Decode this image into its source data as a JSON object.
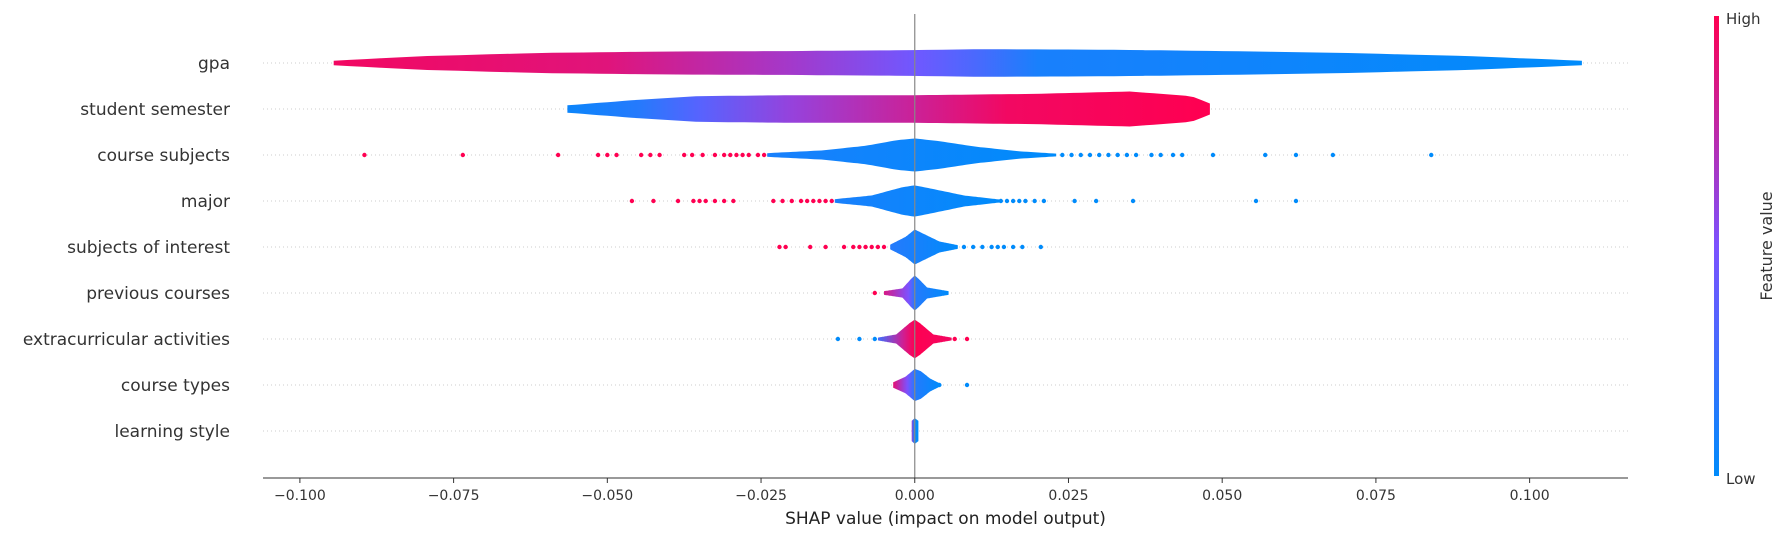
{
  "chart_data": {
    "type": "violin",
    "xlabel": "SHAP value (impact on model output)",
    "xlim": [
      -0.106,
      0.116
    ],
    "x_ticks": [
      -0.1,
      -0.075,
      -0.05,
      -0.025,
      0.0,
      0.025,
      0.05,
      0.075,
      0.1
    ],
    "x_tick_labels": [
      "−0.100",
      "−0.075",
      "−0.050",
      "−0.025",
      "0.000",
      "0.025",
      "0.050",
      "0.075",
      "0.100"
    ],
    "colorbar": {
      "label": "Feature value",
      "high_label": "High",
      "low_label": "Low",
      "high_color": "#ff0051",
      "mid_color": "#7c52ff",
      "low_color": "#008bfb"
    },
    "features": [
      {
        "name": "gpa",
        "range": [
          -0.0945,
          0.1085
        ],
        "profile": [
          [
            -0.0945,
            0.05
          ],
          [
            -0.08,
            0.15
          ],
          [
            -0.06,
            0.22
          ],
          [
            -0.04,
            0.25
          ],
          [
            -0.02,
            0.26
          ],
          [
            0.0,
            0.28
          ],
          [
            0.01,
            0.3
          ],
          [
            0.03,
            0.29
          ],
          [
            0.05,
            0.26
          ],
          [
            0.07,
            0.22
          ],
          [
            0.09,
            0.15
          ],
          [
            0.1085,
            0.05
          ]
        ],
        "colors": [
          [
            -0.0945,
            0.95
          ],
          [
            -0.05,
            0.88
          ],
          [
            -0.02,
            0.65
          ],
          [
            0.0,
            0.45
          ],
          [
            0.01,
            0.3
          ],
          [
            0.02,
            0.1
          ],
          [
            0.1085,
            0.0
          ]
        ],
        "points": []
      },
      {
        "name": "student semester",
        "range": [
          -0.0565,
          0.048
        ],
        "profile": [
          [
            -0.0565,
            0.08
          ],
          [
            -0.045,
            0.2
          ],
          [
            -0.035,
            0.28
          ],
          [
            -0.02,
            0.3
          ],
          [
            0.0,
            0.3
          ],
          [
            0.02,
            0.33
          ],
          [
            0.035,
            0.38
          ],
          [
            0.045,
            0.28
          ],
          [
            0.048,
            0.12
          ]
        ],
        "colors": [
          [
            -0.0565,
            0.05
          ],
          [
            -0.045,
            0.15
          ],
          [
            -0.035,
            0.35
          ],
          [
            -0.02,
            0.6
          ],
          [
            0.0,
            0.8
          ],
          [
            0.015,
            0.95
          ],
          [
            0.048,
            1.0
          ]
        ],
        "points": []
      },
      {
        "name": "course subjects",
        "range": [
          -0.024,
          0.023
        ],
        "profile": [
          [
            -0.024,
            0.04
          ],
          [
            -0.015,
            0.1
          ],
          [
            -0.008,
            0.2
          ],
          [
            -0.003,
            0.32
          ],
          [
            0.0,
            0.36
          ],
          [
            0.004,
            0.3
          ],
          [
            0.01,
            0.18
          ],
          [
            0.017,
            0.08
          ],
          [
            0.023,
            0.03
          ]
        ],
        "colors": [
          [
            -0.024,
            0.1
          ],
          [
            0.023,
            0.0
          ]
        ],
        "points": [
          {
            "x": -0.0895,
            "c": "high"
          },
          {
            "x": -0.0735,
            "c": "high"
          },
          {
            "x": -0.058,
            "c": "high"
          },
          {
            "x": -0.0515,
            "c": "high"
          },
          {
            "x": -0.05,
            "c": "high"
          },
          {
            "x": -0.0485,
            "c": "high"
          },
          {
            "x": -0.0445,
            "c": "high"
          },
          {
            "x": -0.043,
            "c": "high"
          },
          {
            "x": -0.0415,
            "c": "high"
          },
          {
            "x": -0.0375,
            "c": "high"
          },
          {
            "x": -0.0362,
            "c": "high"
          },
          {
            "x": -0.0345,
            "c": "high"
          },
          {
            "x": -0.0325,
            "c": "high"
          },
          {
            "x": -0.031,
            "c": "high"
          },
          {
            "x": -0.03,
            "c": "high"
          },
          {
            "x": -0.029,
            "c": "high"
          },
          {
            "x": -0.028,
            "c": "high"
          },
          {
            "x": -0.027,
            "c": "high"
          },
          {
            "x": -0.0255,
            "c": "high"
          },
          {
            "x": -0.0245,
            "c": "high"
          },
          {
            "x": 0.024,
            "c": "low"
          },
          {
            "x": 0.0255,
            "c": "low"
          },
          {
            "x": 0.027,
            "c": "low"
          },
          {
            "x": 0.0285,
            "c": "low"
          },
          {
            "x": 0.03,
            "c": "low"
          },
          {
            "x": 0.0315,
            "c": "low"
          },
          {
            "x": 0.033,
            "c": "low"
          },
          {
            "x": 0.0345,
            "c": "low"
          },
          {
            "x": 0.036,
            "c": "low"
          },
          {
            "x": 0.0385,
            "c": "low"
          },
          {
            "x": 0.04,
            "c": "low"
          },
          {
            "x": 0.042,
            "c": "low"
          },
          {
            "x": 0.0435,
            "c": "low"
          },
          {
            "x": 0.0485,
            "c": "low"
          },
          {
            "x": 0.057,
            "c": "low"
          },
          {
            "x": 0.062,
            "c": "low"
          },
          {
            "x": 0.068,
            "c": "low"
          },
          {
            "x": 0.084,
            "c": "low"
          }
        ]
      },
      {
        "name": "major",
        "range": [
          -0.013,
          0.014
        ],
        "profile": [
          [
            -0.013,
            0.04
          ],
          [
            -0.007,
            0.12
          ],
          [
            -0.002,
            0.3
          ],
          [
            0.0,
            0.34
          ],
          [
            0.003,
            0.26
          ],
          [
            0.008,
            0.12
          ],
          [
            0.014,
            0.03
          ]
        ],
        "colors": [
          [
            -0.013,
            0.1
          ],
          [
            0.014,
            0.0
          ]
        ],
        "points": [
          {
            "x": -0.046,
            "c": "high"
          },
          {
            "x": -0.0425,
            "c": "high"
          },
          {
            "x": -0.0385,
            "c": "high"
          },
          {
            "x": -0.036,
            "c": "high"
          },
          {
            "x": -0.035,
            "c": "high"
          },
          {
            "x": -0.034,
            "c": "high"
          },
          {
            "x": -0.0325,
            "c": "high"
          },
          {
            "x": -0.031,
            "c": "high"
          },
          {
            "x": -0.0295,
            "c": "high"
          },
          {
            "x": -0.023,
            "c": "high"
          },
          {
            "x": -0.0215,
            "c": "high"
          },
          {
            "x": -0.02,
            "c": "high"
          },
          {
            "x": -0.0185,
            "c": "high"
          },
          {
            "x": -0.0175,
            "c": "high"
          },
          {
            "x": -0.0165,
            "c": "high"
          },
          {
            "x": -0.0155,
            "c": "high"
          },
          {
            "x": -0.0145,
            "c": "high"
          },
          {
            "x": -0.0135,
            "c": "high"
          },
          {
            "x": 0.014,
            "c": "low"
          },
          {
            "x": 0.015,
            "c": "low"
          },
          {
            "x": 0.016,
            "c": "low"
          },
          {
            "x": 0.017,
            "c": "low"
          },
          {
            "x": 0.018,
            "c": "low"
          },
          {
            "x": 0.0195,
            "c": "low"
          },
          {
            "x": 0.021,
            "c": "low"
          },
          {
            "x": 0.026,
            "c": "low"
          },
          {
            "x": 0.0295,
            "c": "low"
          },
          {
            "x": 0.0355,
            "c": "low"
          },
          {
            "x": 0.0555,
            "c": "low"
          },
          {
            "x": 0.062,
            "c": "low"
          }
        ]
      },
      {
        "name": "subjects of interest",
        "range": [
          -0.004,
          0.007
        ],
        "profile": [
          [
            -0.004,
            0.05
          ],
          [
            -0.0015,
            0.22
          ],
          [
            0.0,
            0.38
          ],
          [
            0.002,
            0.25
          ],
          [
            0.004,
            0.12
          ],
          [
            0.007,
            0.04
          ]
        ],
        "colors": [
          [
            -0.004,
            0.15
          ],
          [
            0.007,
            0.0
          ]
        ],
        "points": [
          {
            "x": -0.022,
            "c": "high"
          },
          {
            "x": -0.021,
            "c": "high"
          },
          {
            "x": -0.017,
            "c": "high"
          },
          {
            "x": -0.0145,
            "c": "high"
          },
          {
            "x": -0.0115,
            "c": "high"
          },
          {
            "x": -0.01,
            "c": "high"
          },
          {
            "x": -0.009,
            "c": "high"
          },
          {
            "x": -0.008,
            "c": "high"
          },
          {
            "x": -0.007,
            "c": "high"
          },
          {
            "x": -0.006,
            "c": "high"
          },
          {
            "x": -0.005,
            "c": "high"
          },
          {
            "x": 0.008,
            "c": "low"
          },
          {
            "x": 0.0095,
            "c": "low"
          },
          {
            "x": 0.011,
            "c": "low"
          },
          {
            "x": 0.0125,
            "c": "low"
          },
          {
            "x": 0.0135,
            "c": "low"
          },
          {
            "x": 0.0145,
            "c": "low"
          },
          {
            "x": 0.016,
            "c": "low"
          },
          {
            "x": 0.0175,
            "c": "low"
          },
          {
            "x": 0.0205,
            "c": "low"
          }
        ]
      },
      {
        "name": "previous courses",
        "range": [
          -0.005,
          0.0055
        ],
        "profile": [
          [
            -0.005,
            0.04
          ],
          [
            -0.002,
            0.1
          ],
          [
            -0.0005,
            0.32
          ],
          [
            0.0,
            0.38
          ],
          [
            0.0007,
            0.3
          ],
          [
            0.002,
            0.12
          ],
          [
            0.0055,
            0.04
          ]
        ],
        "colors": [
          [
            -0.005,
            0.85
          ],
          [
            -0.001,
            0.5
          ],
          [
            0.0,
            0.15
          ],
          [
            0.0055,
            0.0
          ]
        ],
        "points": [
          {
            "x": -0.0065,
            "c": "high"
          }
        ]
      },
      {
        "name": "extracurricular activities",
        "range": [
          -0.006,
          0.006
        ],
        "profile": [
          [
            -0.006,
            0.03
          ],
          [
            -0.003,
            0.1
          ],
          [
            -0.0008,
            0.35
          ],
          [
            0.0,
            0.42
          ],
          [
            0.0008,
            0.35
          ],
          [
            0.003,
            0.1
          ],
          [
            0.006,
            0.03
          ]
        ],
        "colors": [
          [
            -0.006,
            0.25
          ],
          [
            -0.002,
            0.8
          ],
          [
            0.0,
            1.0
          ],
          [
            0.006,
            0.95
          ]
        ],
        "points": [
          {
            "x": -0.0125,
            "c": "low"
          },
          {
            "x": -0.009,
            "c": "low"
          },
          {
            "x": -0.0065,
            "c": "low"
          },
          {
            "x": 0.0065,
            "c": "high"
          },
          {
            "x": 0.0085,
            "c": "high"
          }
        ]
      },
      {
        "name": "course types",
        "range": [
          -0.0035,
          0.004
        ],
        "profile": [
          [
            -0.0035,
            0.06
          ],
          [
            -0.0015,
            0.18
          ],
          [
            0.0,
            0.35
          ],
          [
            0.001,
            0.3
          ],
          [
            0.0025,
            0.14
          ],
          [
            0.004,
            0.04
          ]
        ],
        "colors": [
          [
            -0.0035,
            0.9
          ],
          [
            -0.0012,
            0.5
          ],
          [
            0.0,
            0.15
          ],
          [
            0.004,
            0.0
          ]
        ],
        "points": [
          {
            "x": 0.004,
            "c": "low"
          },
          {
            "x": 0.0085,
            "c": "low"
          }
        ]
      },
      {
        "name": "learning style",
        "range": [
          -0.0005,
          0.0006
        ],
        "profile": [
          [
            -0.0005,
            0.22
          ],
          [
            0.0,
            0.28
          ],
          [
            0.0006,
            0.22
          ]
        ],
        "colors": [
          [
            -0.0005,
            0.6
          ],
          [
            0.0,
            0.0
          ],
          [
            0.0006,
            0.0
          ]
        ],
        "points": []
      }
    ]
  }
}
